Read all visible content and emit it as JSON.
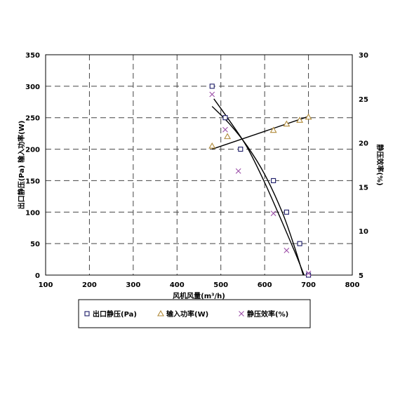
{
  "chart_data": {
    "type": "scatter",
    "xlabel": "风机风量(m³/h)",
    "ylabel_left": "出口静压(Pa) 输入功率(W)",
    "ylabel_right": "静压效率(%)",
    "x_ticks": [
      "100",
      "200",
      "300",
      "400",
      "500",
      "600",
      "700",
      "800"
    ],
    "y_left_ticks": [
      "0",
      "50",
      "100",
      "150",
      "200",
      "250",
      "300",
      "350"
    ],
    "y_right_ticks": [
      "5",
      "10",
      "15",
      "20",
      "25",
      "30"
    ],
    "xlim": [
      100,
      800
    ],
    "ylim_left": [
      0,
      350
    ],
    "ylim_right": [
      5,
      30
    ],
    "grid": true,
    "legend_position": "bottom",
    "series": [
      {
        "name": "出口静压(Pa)",
        "axis": "left",
        "marker": "square",
        "color": "#1a1a66",
        "points": [
          [
            480,
            300
          ],
          [
            510,
            250
          ],
          [
            545,
            200
          ],
          [
            620,
            150
          ],
          [
            650,
            100
          ],
          [
            680,
            50
          ],
          [
            700,
            0
          ]
        ]
      },
      {
        "name": "输入功率(W)",
        "axis": "left",
        "marker": "triangle",
        "color": "#b08a3a",
        "points": [
          [
            480,
            205
          ],
          [
            515,
            220
          ],
          [
            620,
            230
          ],
          [
            650,
            240
          ],
          [
            680,
            246
          ],
          [
            700,
            251
          ]
        ]
      },
      {
        "name": "静压效率(%)",
        "axis": "right",
        "marker": "x",
        "color": "#9c4fa8",
        "points": [
          [
            480,
            25.5
          ],
          [
            510,
            21.5
          ],
          [
            540,
            16.8
          ],
          [
            620,
            12.0
          ],
          [
            650,
            7.8
          ],
          [
            700,
            5.2
          ]
        ]
      }
    ],
    "fit_lines": [
      {
        "series": "出口静压(Pa)",
        "axis": "left",
        "points": [
          [
            480,
            268
          ],
          [
            520,
            240
          ],
          [
            560,
            205
          ],
          [
            600,
            160
          ],
          [
            640,
            100
          ],
          [
            668,
            45
          ],
          [
            688,
            0
          ]
        ]
      },
      {
        "series": "输入功率(W)",
        "axis": "left",
        "points": [
          [
            480,
            200
          ],
          [
            700,
            252
          ]
        ]
      },
      {
        "series": "静压效率(%)",
        "axis": "right",
        "points": [
          [
            484,
            25.0
          ],
          [
            520,
            22.5
          ],
          [
            560,
            19.5
          ],
          [
            600,
            15.5
          ],
          [
            640,
            11.0
          ],
          [
            670,
            7.5
          ],
          [
            690,
            5.0
          ]
        ]
      }
    ]
  }
}
